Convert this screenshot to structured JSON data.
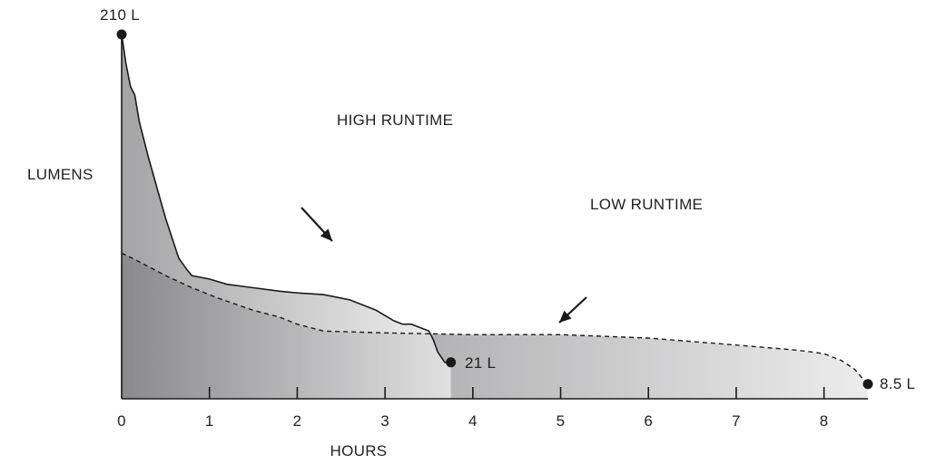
{
  "chart_data": {
    "type": "area",
    "xlabel": "HOURS",
    "ylabel": "LUMENS",
    "xlim": [
      0,
      8.5
    ],
    "xticks": [
      "0",
      "1",
      "2",
      "3",
      "4",
      "5",
      "6",
      "7",
      "8"
    ],
    "ylim": [
      0,
      210
    ],
    "grid": false,
    "series": [
      {
        "name": "HIGH RUNTIME",
        "end_label": "21 L",
        "start_label": "210 L",
        "x": [
          0,
          0.05,
          0.1,
          0.15,
          0.2,
          0.3,
          0.5,
          0.65,
          0.75,
          0.8,
          1.0,
          1.2,
          1.5,
          1.8,
          2.0,
          2.3,
          2.6,
          2.9,
          3.1,
          3.2,
          3.3,
          3.4,
          3.5,
          3.55,
          3.6,
          3.68,
          3.75
        ],
        "y": [
          210,
          193,
          180,
          175,
          160,
          140,
          104,
          81,
          74,
          71,
          69,
          66,
          64,
          62,
          61,
          60,
          57,
          51,
          45,
          43,
          43,
          41,
          39,
          34,
          27,
          21,
          21
        ]
      },
      {
        "name": "LOW RUNTIME",
        "end_label": "8.5 L",
        "x": [
          0,
          0.2,
          0.5,
          0.8,
          1.1,
          1.5,
          1.8,
          2.0,
          2.3,
          3.0,
          4.0,
          5.0,
          6.0,
          7.0,
          7.7,
          8.0,
          8.2,
          8.35,
          8.45,
          8.5
        ],
        "y": [
          84,
          79,
          71,
          64,
          58,
          51,
          47,
          43,
          39,
          38,
          37,
          37,
          35,
          31,
          28,
          26,
          22,
          17,
          11,
          8.5
        ]
      }
    ]
  },
  "colors": {
    "fill_dark": "#8a8a8c",
    "fill_light": "#ececed",
    "line": "#1a1a1a"
  }
}
